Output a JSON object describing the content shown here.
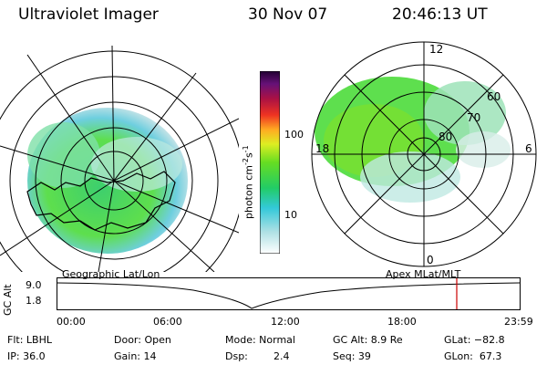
{
  "header": {
    "instrument": "Ultraviolet Imager",
    "date": "30 Nov 07",
    "time": "20:46:13 UT"
  },
  "left_panel": {
    "caption": "Geographic Lat/Lon"
  },
  "right_panel": {
    "caption": "Apex MLat/MLT",
    "mlt_labels": {
      "top": "12",
      "left": "18",
      "right": "6",
      "bottom": "0"
    },
    "lat_labels": [
      "60",
      "70",
      "80"
    ]
  },
  "colorbar": {
    "unit_label": "photon cm",
    "unit_exp1": "-2",
    "unit_mid": "s",
    "unit_exp2": "-1",
    "ticks": [
      "100",
      "10"
    ]
  },
  "altitude_plot": {
    "ylabel": "GC Alt",
    "y_ticks": [
      "9.0",
      "1.8"
    ],
    "x_ticks": [
      "00:00",
      "06:00",
      "12:00",
      "18:00",
      "23:59"
    ],
    "marker_color": "#cc0000"
  },
  "info": {
    "row1": {
      "flt": "Flt: LBHL",
      "door": "Door: Open",
      "mode": "Mode: Normal",
      "gcalt": "GC Alt: 8.9 Re",
      "glat": "GLat: −82.8"
    },
    "row2": {
      "ip": "IP: 36.0",
      "gain": "Gain: 14",
      "dsp_label": "Dsp:",
      "dsp_value": "2.4",
      "seq": "Seq: 39",
      "glon": "GLon:  67.3"
    }
  }
}
